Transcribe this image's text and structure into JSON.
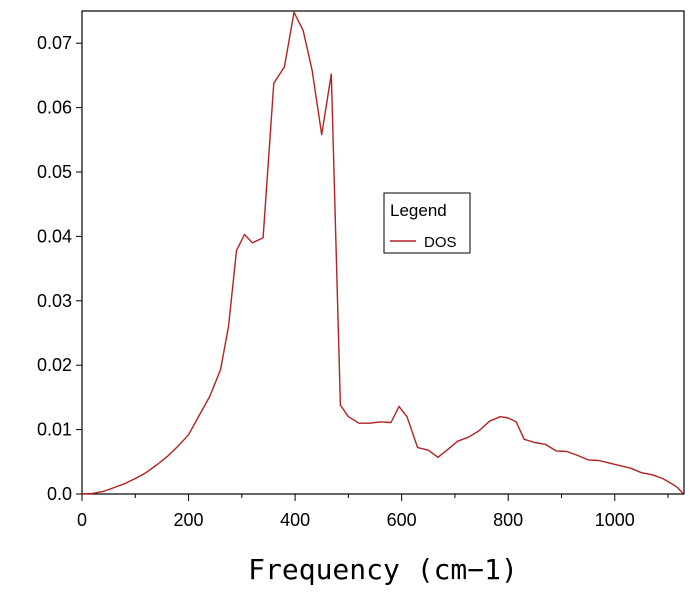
{
  "chart_data": {
    "type": "line",
    "xlabel": "Frequency (cm−1)",
    "ylabel": "",
    "xlim": [
      0,
      1130
    ],
    "ylim": [
      0,
      0.075
    ],
    "x_ticks": [
      0,
      200,
      400,
      600,
      800,
      1000
    ],
    "x_tick_labels": [
      "0",
      "200",
      "400",
      "600",
      "800",
      "1000"
    ],
    "y_ticks": [
      0,
      0.01,
      0.02,
      0.03,
      0.04,
      0.05,
      0.06,
      0.07
    ],
    "y_tick_labels": [
      "0.0",
      "0.01",
      "0.02",
      "0.03",
      "0.04",
      "0.05",
      "0.06",
      "0.07"
    ],
    "grid": false,
    "legend": {
      "title": "Legend",
      "placement": "center-right"
    },
    "series": [
      {
        "name": "DOS",
        "color": "#b22222",
        "points": [
          [
            0,
            0.0
          ],
          [
            20,
            0.0001
          ],
          [
            40,
            0.0004
          ],
          [
            60,
            0.001
          ],
          [
            80,
            0.0016
          ],
          [
            100,
            0.0024
          ],
          [
            120,
            0.0033
          ],
          [
            140,
            0.0045
          ],
          [
            160,
            0.0058
          ],
          [
            180,
            0.0074
          ],
          [
            200,
            0.0092
          ],
          [
            220,
            0.0122
          ],
          [
            240,
            0.0152
          ],
          [
            260,
            0.0193
          ],
          [
            275,
            0.026
          ],
          [
            290,
            0.0378
          ],
          [
            305,
            0.0403
          ],
          [
            320,
            0.039
          ],
          [
            340,
            0.0398
          ],
          [
            360,
            0.0638
          ],
          [
            380,
            0.0663
          ],
          [
            398,
            0.0748
          ],
          [
            415,
            0.072
          ],
          [
            432,
            0.0658
          ],
          [
            450,
            0.0558
          ],
          [
            468,
            0.0652
          ],
          [
            485,
            0.0138
          ],
          [
            500,
            0.012
          ],
          [
            520,
            0.011
          ],
          [
            540,
            0.011
          ],
          [
            560,
            0.0112
          ],
          [
            580,
            0.0111
          ],
          [
            595,
            0.0136
          ],
          [
            610,
            0.012
          ],
          [
            630,
            0.0072
          ],
          [
            650,
            0.0068
          ],
          [
            668,
            0.0057
          ],
          [
            685,
            0.0068
          ],
          [
            705,
            0.0082
          ],
          [
            725,
            0.0088
          ],
          [
            745,
            0.0098
          ],
          [
            765,
            0.0113
          ],
          [
            785,
            0.012
          ],
          [
            800,
            0.0118
          ],
          [
            815,
            0.0112
          ],
          [
            830,
            0.0085
          ],
          [
            850,
            0.008
          ],
          [
            870,
            0.0077
          ],
          [
            890,
            0.0067
          ],
          [
            910,
            0.0066
          ],
          [
            930,
            0.006
          ],
          [
            950,
            0.0053
          ],
          [
            970,
            0.0052
          ],
          [
            990,
            0.0048
          ],
          [
            1010,
            0.0044
          ],
          [
            1030,
            0.004
          ],
          [
            1050,
            0.0033
          ],
          [
            1070,
            0.003
          ],
          [
            1090,
            0.0024
          ],
          [
            1105,
            0.0017
          ],
          [
            1118,
            0.001
          ],
          [
            1128,
            0.0001
          ]
        ]
      }
    ]
  }
}
